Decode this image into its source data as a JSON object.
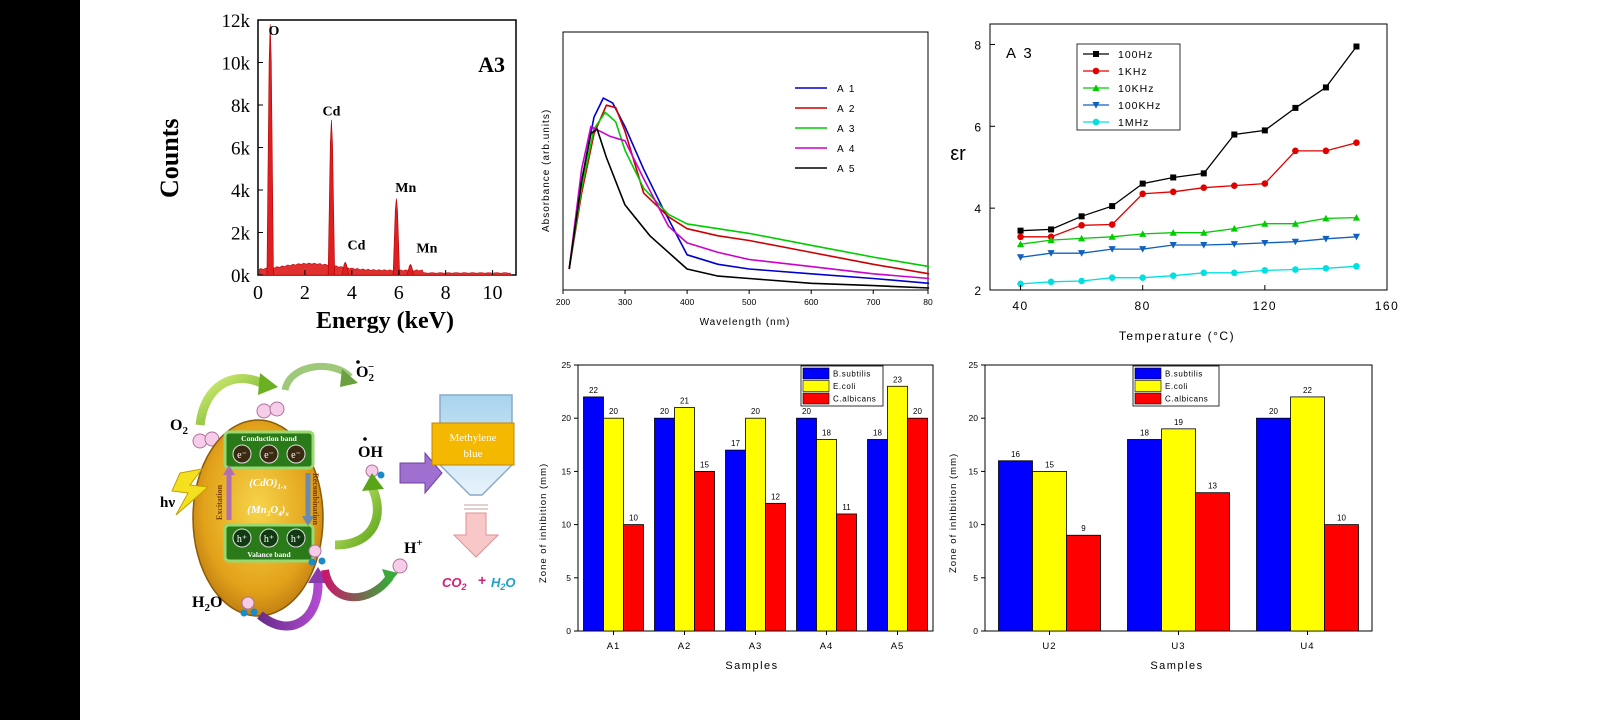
{
  "chart_data": [
    {
      "type": "bar",
      "subtype": "eds-spectrum",
      "label": "A3",
      "ylabel": "Counts",
      "xlabel": "Energy (keV)",
      "xlim": [
        0,
        11
      ],
      "ylim": [
        0,
        12000
      ],
      "xticks": [
        "0",
        "2",
        "4",
        "6",
        "8",
        "10"
      ],
      "yticks": [
        "0k",
        "2k",
        "4k",
        "6k",
        "8k",
        "10k",
        "12k"
      ],
      "peak_labels": [
        "O",
        "Cd",
        "Cd",
        "Mn",
        "Mn"
      ],
      "peaks": [
        {
          "label": "O",
          "x": 0.52,
          "y": 11800
        },
        {
          "label": "Cd",
          "x": 3.13,
          "y": 7300
        },
        {
          "label": "Cd",
          "x": 3.72,
          "y": 600
        },
        {
          "label": "Mn",
          "x": 5.9,
          "y": 3600
        },
        {
          "label": "Mn",
          "x": 6.5,
          "y": 500
        }
      ]
    },
    {
      "type": "line",
      "subtype": "absorbance",
      "ylabel": "Absorbance (arb.units)",
      "xlabel": "Wavelength (nm)",
      "xlim": [
        200,
        800
      ],
      "ylim": [
        0,
        1.0
      ],
      "xticks": [
        "200",
        "300",
        "400",
        "500",
        "600",
        "700",
        "80"
      ],
      "series": [
        {
          "name": "A 1",
          "color": "#0000cc",
          "x": [
            210,
            230,
            250,
            265,
            280,
            300,
            330,
            360,
            400,
            450,
            500,
            600,
            700,
            790
          ],
          "y": [
            0.08,
            0.45,
            0.72,
            0.8,
            0.78,
            0.68,
            0.5,
            0.34,
            0.14,
            0.1,
            0.08,
            0.06,
            0.04,
            0.02
          ]
        },
        {
          "name": "A 2",
          "color": "#cc0000",
          "x": [
            210,
            230,
            250,
            270,
            285,
            300,
            330,
            370,
            400,
            450,
            500,
            600,
            700,
            790
          ],
          "y": [
            0.08,
            0.4,
            0.65,
            0.77,
            0.76,
            0.66,
            0.4,
            0.3,
            0.25,
            0.22,
            0.2,
            0.15,
            0.1,
            0.06
          ]
        },
        {
          "name": "A 3",
          "color": "#00cc00",
          "x": [
            210,
            230,
            250,
            268,
            285,
            300,
            330,
            370,
            400,
            450,
            500,
            600,
            700,
            790
          ],
          "y": [
            0.08,
            0.42,
            0.67,
            0.74,
            0.7,
            0.58,
            0.42,
            0.31,
            0.27,
            0.25,
            0.23,
            0.18,
            0.13,
            0.09
          ]
        },
        {
          "name": "A 4",
          "color": "#cc00cc",
          "x": [
            210,
            230,
            245,
            260,
            275,
            300,
            330,
            370,
            400,
            450,
            500,
            600,
            700,
            790
          ],
          "y": [
            0.08,
            0.5,
            0.68,
            0.66,
            0.64,
            0.62,
            0.46,
            0.26,
            0.19,
            0.15,
            0.12,
            0.09,
            0.06,
            0.04
          ]
        },
        {
          "name": "A 5",
          "color": "#000000",
          "x": [
            210,
            230,
            245,
            255,
            270,
            300,
            340,
            400,
            450,
            500,
            600,
            700,
            790
          ],
          "y": [
            0.08,
            0.45,
            0.65,
            0.67,
            0.55,
            0.35,
            0.22,
            0.08,
            0.05,
            0.04,
            0.02,
            0.01,
            0.0
          ]
        }
      ]
    },
    {
      "type": "line",
      "subtype": "dielectric",
      "label": "A 3",
      "ylabel": "εr",
      "xlabel": "Temperature (°C)",
      "xlim": [
        30,
        160
      ],
      "ylim": [
        2,
        8.5
      ],
      "xticks": [
        "40",
        "80",
        "120",
        "160"
      ],
      "yticks": [
        "2",
        "4",
        "6",
        "8"
      ],
      "x": [
        40,
        50,
        60,
        70,
        80,
        90,
        100,
        110,
        120,
        130,
        140,
        150
      ],
      "series": [
        {
          "name": "100Hz",
          "color": "#000000",
          "marker": "square",
          "values": [
            3.45,
            3.48,
            3.8,
            4.05,
            4.6,
            4.75,
            4.85,
            5.8,
            5.9,
            6.45,
            6.95,
            7.95
          ]
        },
        {
          "name": "1KHz",
          "color": "#e00000",
          "marker": "circle",
          "values": [
            3.3,
            3.3,
            3.58,
            3.6,
            4.35,
            4.4,
            4.5,
            4.55,
            4.6,
            5.4,
            5.4,
            5.6
          ]
        },
        {
          "name": "10KHz",
          "color": "#00cc00",
          "marker": "triangle-up",
          "values": [
            3.12,
            3.22,
            3.26,
            3.3,
            3.37,
            3.4,
            3.4,
            3.5,
            3.62,
            3.62,
            3.75,
            3.77
          ]
        },
        {
          "name": "100KHz",
          "color": "#1060c0",
          "marker": "triangle-down",
          "values": [
            2.8,
            2.9,
            2.9,
            3.0,
            3.0,
            3.1,
            3.1,
            3.12,
            3.15,
            3.18,
            3.25,
            3.3
          ]
        },
        {
          "name": "1MHz",
          "color": "#00e0e0",
          "marker": "circle",
          "values": [
            2.15,
            2.2,
            2.22,
            2.3,
            2.3,
            2.35,
            2.42,
            2.42,
            2.48,
            2.5,
            2.53,
            2.58
          ]
        }
      ]
    },
    {
      "type": "bar",
      "title": "",
      "ylabel": "Zone of inhibition (mm)",
      "xlabel": "Samples",
      "ylim": [
        0,
        25
      ],
      "yticks": [
        "0",
        "5",
        "10",
        "15",
        "20",
        "25"
      ],
      "categories": [
        "A1",
        "A2",
        "A3",
        "A4",
        "A5"
      ],
      "series": [
        {
          "name": "B.subtilis",
          "color": "#0000ff",
          "values": [
            22,
            20,
            17,
            20,
            18
          ]
        },
        {
          "name": "E.coli",
          "color": "#ffff00",
          "values": [
            20,
            21,
            20,
            18,
            23
          ]
        },
        {
          "name": "C.albicans",
          "color": "#ff0000",
          "values": [
            10,
            15,
            12,
            11,
            20
          ]
        }
      ]
    },
    {
      "type": "bar",
      "title": "",
      "ylabel": "Zone of inhibition (mm)",
      "xlabel": "Samples",
      "ylim": [
        0,
        25
      ],
      "yticks": [
        "0",
        "5",
        "10",
        "15",
        "20",
        "25"
      ],
      "categories": [
        "U2",
        "U3",
        "U4"
      ],
      "series": [
        {
          "name": "B.subtilis",
          "color": "#0000ff",
          "values": [
            16,
            18,
            20
          ]
        },
        {
          "name": "E.coli",
          "color": "#ffff00",
          "values": [
            15,
            19,
            22
          ]
        },
        {
          "name": "C.albicans",
          "color": "#ff0000",
          "values": [
            9,
            13,
            10
          ]
        }
      ]
    }
  ],
  "mechanism": {
    "o2": "O",
    "o2_sub": "2",
    "superoxide": "O",
    "superoxide_sub": "2",
    "superoxide_sup": "−",
    "conduction_band": "Conduction band",
    "valence_band": "Valance band",
    "electron": "e⁻",
    "hole": "h⁺",
    "excitation": "Excitation",
    "recombination": "Recombination",
    "cdo": "(CdO)",
    "cdo_sub": "1-x",
    "mn3o4": "(Mn",
    "mn3o4_mid": "O",
    "mn3o4_end": ")",
    "mn3o4_sub_a": "3",
    "mn3o4_sub_b": "4",
    "mn3o4_sub_x": "x",
    "hv": "hν",
    "oh": "OH",
    "h_plus": "H",
    "h_plus_sup": "+",
    "h2o": "H",
    "h2o_sub": "2",
    "h2o_end": "O",
    "methylene_blue_1": "Methylene",
    "methylene_blue_2": "blue",
    "co2": "CO",
    "co2_sub": "2",
    "plus": "+",
    "h2o_product": "H",
    "h2o_product_sub": "2",
    "h2o_product_end": "O"
  }
}
